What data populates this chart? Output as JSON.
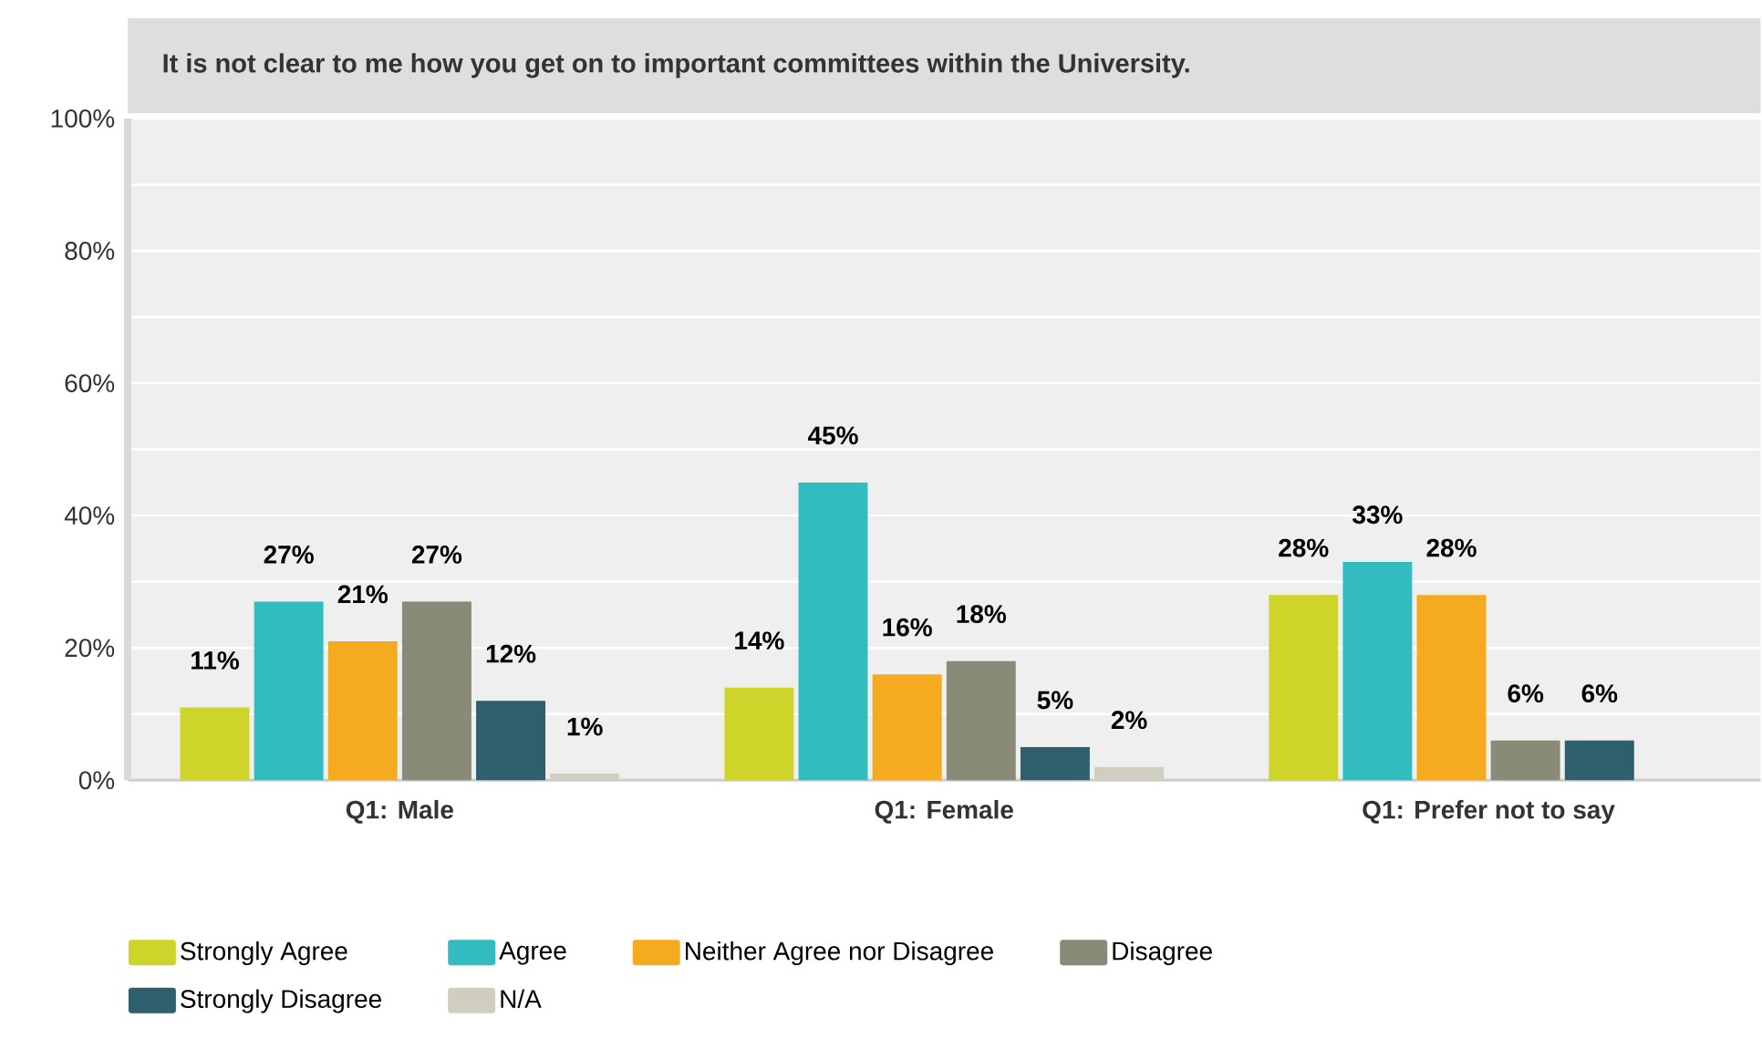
{
  "chart_data": {
    "type": "bar",
    "title": "It is not clear to me how you get on to important committees within the University.",
    "categories": [
      "Q1: Male",
      "Q1: Female",
      "Q1: Prefer not to say"
    ],
    "series": [
      {
        "name": "Strongly Agree",
        "color": "#cfd42a",
        "values": [
          11,
          14,
          28
        ],
        "value_labels": [
          "11%",
          "14%",
          "28%"
        ]
      },
      {
        "name": "Agree",
        "color": "#33bcc0",
        "values": [
          27,
          45,
          33
        ],
        "value_labels": [
          "27%",
          "45%",
          "33%"
        ]
      },
      {
        "name": "Neither Agree nor Disagree",
        "color": "#f5ab20",
        "values": [
          21,
          16,
          28
        ],
        "value_labels": [
          "21%",
          "16%",
          "28%"
        ]
      },
      {
        "name": "Disagree",
        "color": "#898a78",
        "values": [
          27,
          18,
          6
        ],
        "value_labels": [
          "27%",
          "18%",
          "6%"
        ]
      },
      {
        "name": "Strongly Disagree",
        "color": "#2e5f6c",
        "values": [
          12,
          5,
          6
        ],
        "value_labels": [
          "12%",
          "5%",
          "6%"
        ]
      },
      {
        "name": "N/A",
        "color": "#d0cfbf",
        "values": [
          1,
          2,
          null
        ],
        "value_labels": [
          "1%",
          "2%",
          null
        ]
      }
    ],
    "ylim": [
      0,
      100
    ],
    "yticks": [
      {
        "value": 0,
        "label": "0%"
      },
      {
        "value": 10,
        "label": null
      },
      {
        "value": 20,
        "label": "20%"
      },
      {
        "value": 30,
        "label": null
      },
      {
        "value": 40,
        "label": "40%"
      },
      {
        "value": 50,
        "label": null
      },
      {
        "value": 60,
        "label": "60%"
      },
      {
        "value": 70,
        "label": null
      },
      {
        "value": 80,
        "label": "80%"
      },
      {
        "value": 90,
        "label": null
      },
      {
        "value": 100,
        "label": "100%"
      }
    ],
    "grid": true,
    "legend": "bottom"
  }
}
